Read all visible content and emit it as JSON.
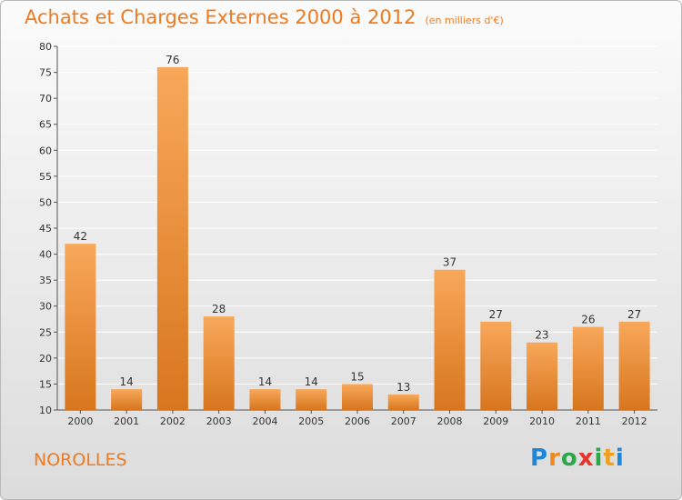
{
  "header": {
    "title": "Achats et Charges Externes 2000 à 2012",
    "subtitle": "(en milliers d'€)"
  },
  "footer": {
    "commune": "NOROLLES",
    "logo_letters": [
      "P",
      "r",
      "o",
      "x",
      "i",
      "t",
      "i"
    ],
    "logo_colors": [
      "#1e88d8",
      "#f08a1e",
      "#2ca84a",
      "#e8322a",
      "#2ca84a",
      "#f0a01e",
      "#1e88d8"
    ]
  },
  "colors": {
    "accent": "#f07a1e",
    "bar_top": "#f8a85a",
    "bar_bottom": "#d8761e"
  },
  "chart_data": {
    "type": "bar",
    "title": "Achats et Charges Externes 2000 à 2012",
    "xlabel": "",
    "ylabel": "",
    "ylim": [
      10,
      80
    ],
    "yticks": [
      10,
      15,
      20,
      25,
      30,
      35,
      40,
      45,
      50,
      55,
      60,
      65,
      70,
      75,
      80
    ],
    "grid": true,
    "categories": [
      "2000",
      "2001",
      "2002",
      "2003",
      "2004",
      "2005",
      "2006",
      "2007",
      "2008",
      "2009",
      "2010",
      "2011",
      "2012"
    ],
    "values": [
      42,
      14,
      76,
      28,
      14,
      14,
      15,
      13,
      37,
      27,
      23,
      26,
      27
    ]
  }
}
